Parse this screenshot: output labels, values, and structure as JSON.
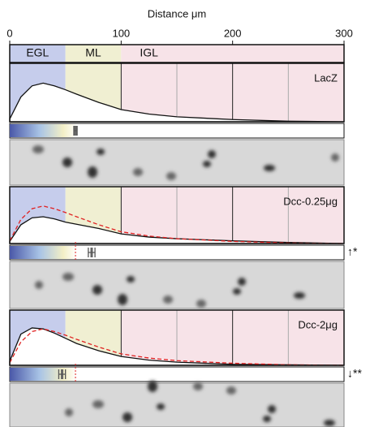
{
  "chart_data": {
    "type": "density",
    "xlabel": "Distance μm",
    "xlim": [
      0,
      300
    ],
    "xticks": [
      0,
      100,
      200,
      300
    ],
    "minor_xticks": [
      150,
      250
    ],
    "ylim": [
      0,
      1
    ],
    "layers": [
      {
        "name": "EGL",
        "start": 0,
        "end": 50,
        "color": "#c6cdec",
        "text_color": "#2f6fcf"
      },
      {
        "name": "ML",
        "start": 50,
        "end": 100,
        "color": "#f0efd2",
        "text_color": "#f0a030"
      },
      {
        "name": "IGL",
        "start": 100,
        "end": 300,
        "color": "#f7e3e8",
        "text_color": "#e8709a"
      }
    ],
    "x": [
      0,
      10,
      20,
      30,
      40,
      50,
      60,
      80,
      100,
      125,
      150,
      200,
      250,
      300
    ],
    "panels": [
      {
        "title": "LacZ",
        "series": [
          {
            "color": "#111111",
            "dash": false,
            "values": [
              0.05,
              0.45,
              0.65,
              0.7,
              0.65,
              0.58,
              0.5,
              0.35,
              0.22,
              0.14,
              0.09,
              0.04,
              0.01,
              0
            ]
          }
        ],
        "mean": 59,
        "error": 1.5
      },
      {
        "title": "Dcc-0.25μg",
        "series": [
          {
            "color": "#111111",
            "dash": false,
            "values": [
              0.04,
              0.35,
              0.48,
              0.5,
              0.46,
              0.4,
              0.36,
              0.28,
              0.18,
              0.12,
              0.09,
              0.05,
              0.02,
              0
            ]
          },
          {
            "color": "#e02020",
            "dash": true,
            "values": [
              0.05,
              0.45,
              0.65,
              0.7,
              0.65,
              0.58,
              0.5,
              0.35,
              0.22,
              0.14,
              0.09,
              0.04,
              0.01,
              0
            ]
          }
        ],
        "mean": 73.5,
        "error": 3,
        "reference_mean": 59,
        "significance": "↑*"
      },
      {
        "title": "Dcc-2μg",
        "series": [
          {
            "color": "#111111",
            "dash": false,
            "values": [
              0.08,
              0.6,
              0.72,
              0.7,
              0.62,
              0.52,
              0.42,
              0.28,
              0.17,
              0.1,
              0.06,
              0.02,
              0.01,
              0
            ]
          },
          {
            "color": "#e02020",
            "dash": true,
            "values": [
              0.05,
              0.45,
              0.65,
              0.7,
              0.65,
              0.58,
              0.5,
              0.35,
              0.22,
              0.14,
              0.09,
              0.04,
              0.01,
              0
            ]
          }
        ],
        "mean": 47,
        "error": 3,
        "reference_mean": 59,
        "significance": "↓**"
      }
    ]
  }
}
